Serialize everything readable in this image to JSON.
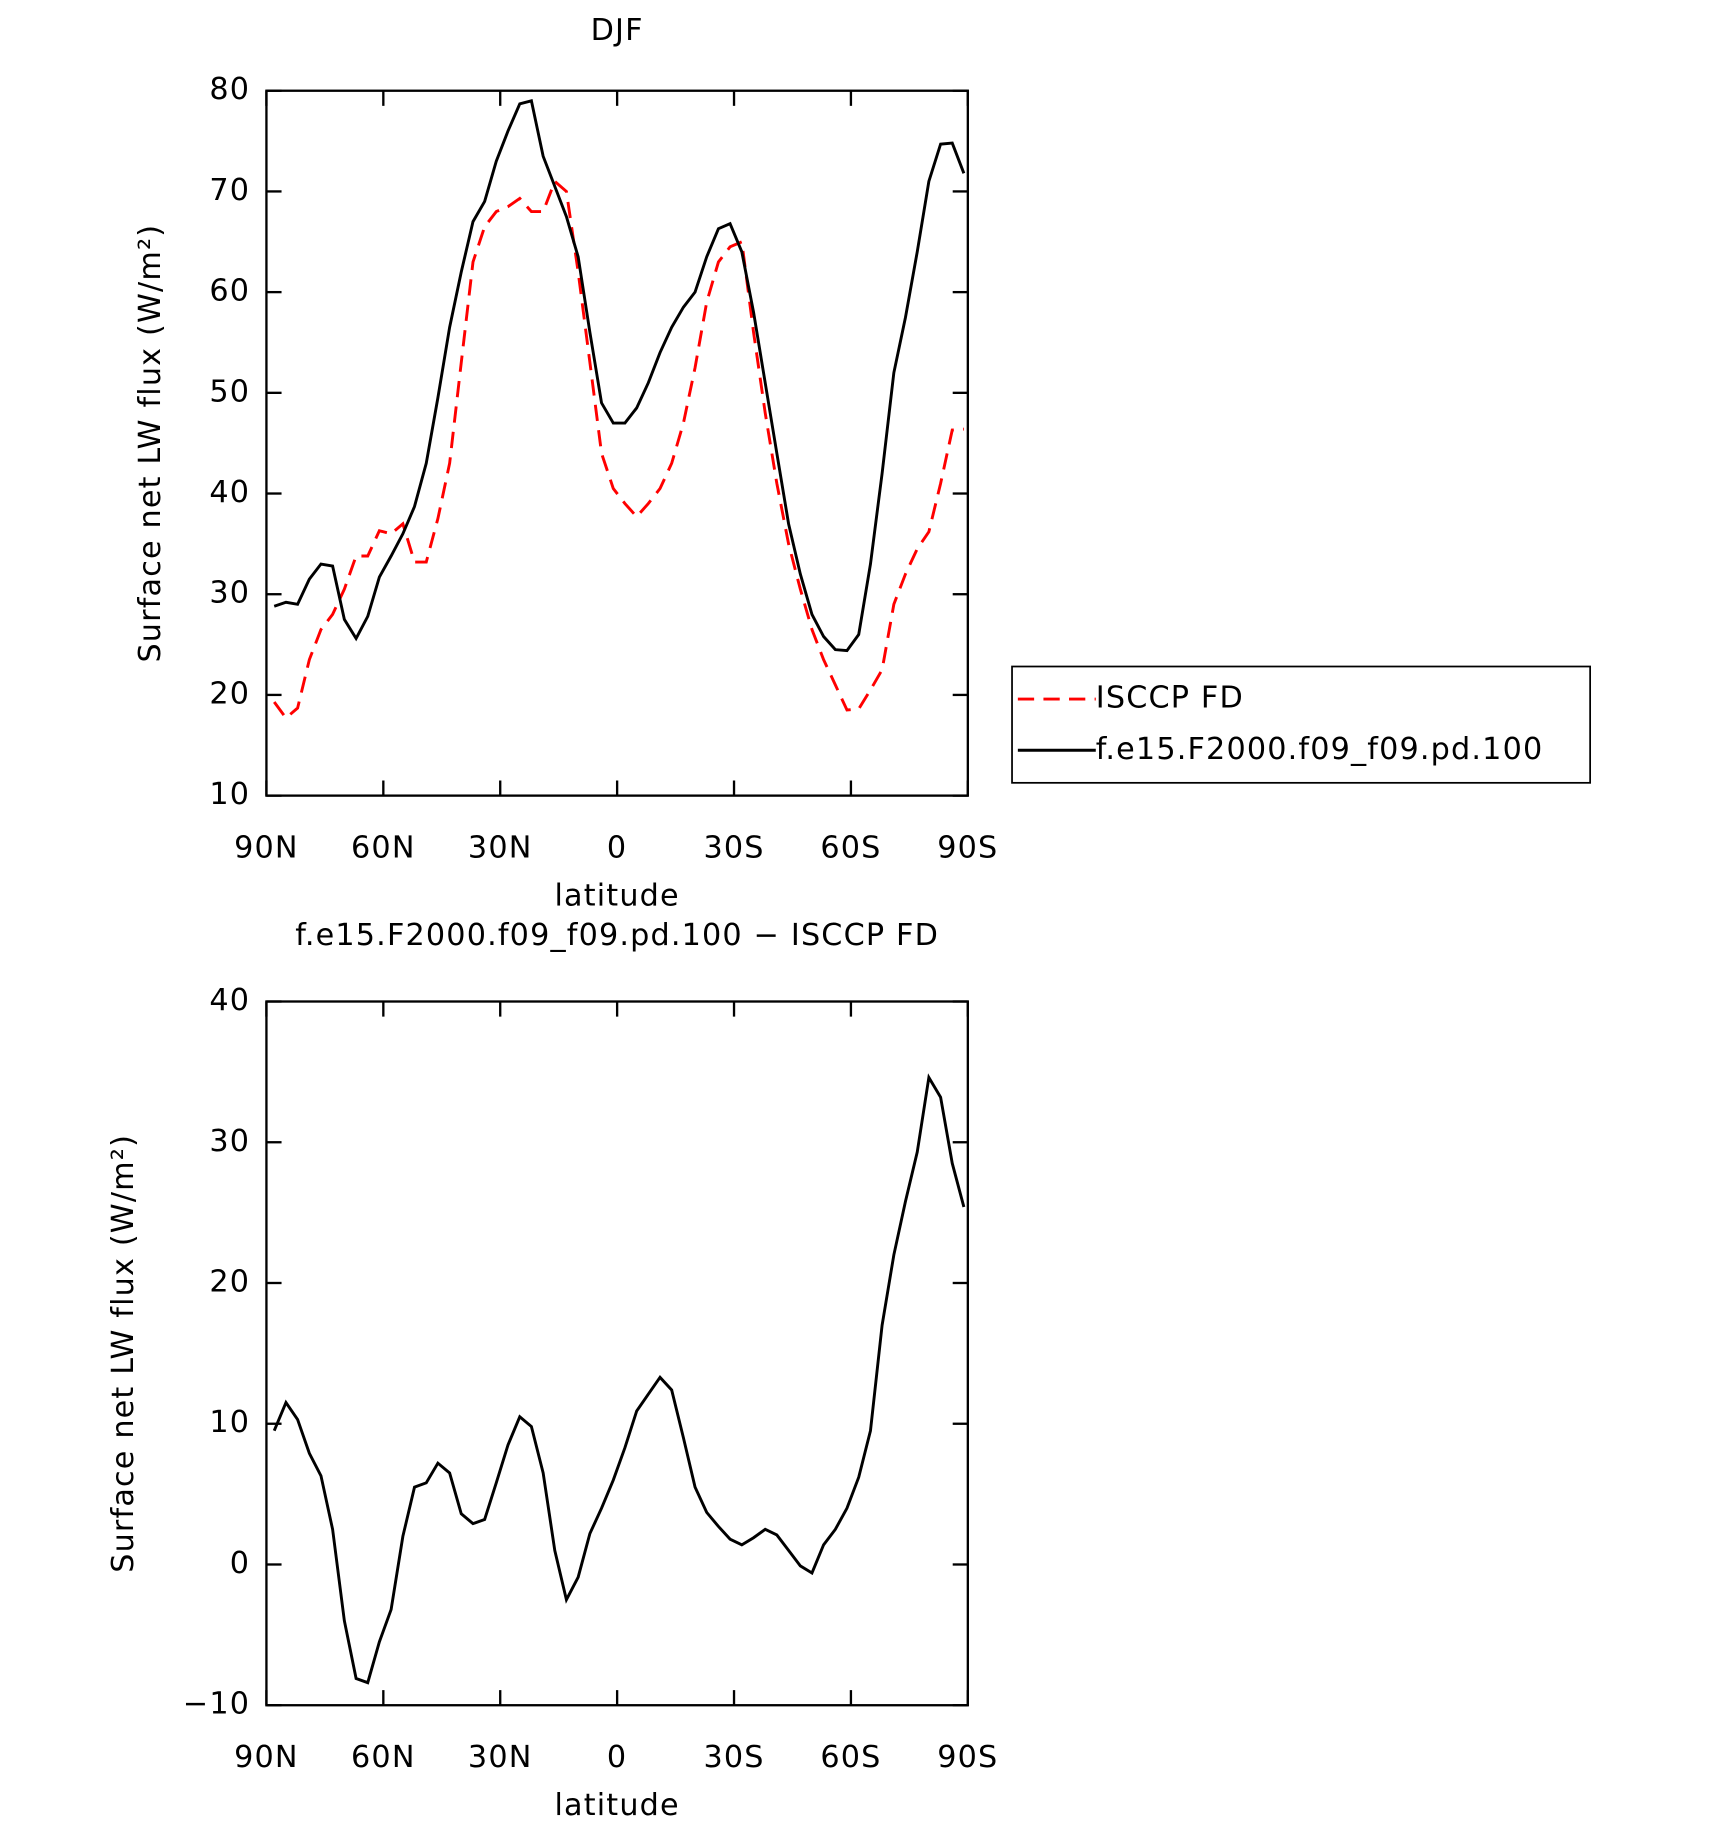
{
  "chart_data": [
    {
      "type": "line",
      "title": "DJF",
      "x_label": "latitude",
      "y_label": "Surface net LW flux (W/m²)",
      "x": [
        88,
        85,
        82,
        79,
        76,
        73,
        70,
        67,
        64,
        61,
        58,
        55,
        52,
        49,
        46,
        43,
        40,
        37,
        34,
        31,
        28,
        25,
        22,
        19,
        16,
        13,
        10,
        7,
        4,
        1,
        -2,
        -5,
        -8,
        -11,
        -14,
        -17,
        -20,
        -23,
        -26,
        -29,
        -32,
        -35,
        -38,
        -41,
        -44,
        -47,
        -50,
        -53,
        -56,
        -59,
        -62,
        -65,
        -68,
        -71,
        -74,
        -77,
        -80,
        -83,
        -86,
        -89
      ],
      "xlim": [
        90,
        -90
      ],
      "xticks": [
        {
          "value": 90,
          "label": "90N"
        },
        {
          "value": 60,
          "label": "60N"
        },
        {
          "value": 30,
          "label": "30N"
        },
        0,
        {
          "value": -30,
          "label": "30S"
        },
        {
          "value": -60,
          "label": "60S"
        },
        {
          "value": -90,
          "label": "90S"
        }
      ],
      "ylim": [
        10,
        80
      ],
      "yticks": [
        10,
        20,
        30,
        40,
        50,
        60,
        70,
        80
      ],
      "legend": "right",
      "series": [
        {
          "name": "ISCCP FD",
          "color": "#ff0000",
          "line_style": "dashed",
          "values": [
            19.3,
            17.7,
            18.7,
            23.5,
            26.5,
            28,
            30.5,
            33.8,
            33.8,
            36.3,
            36,
            37,
            33.2,
            33.2,
            37.5,
            43,
            53,
            63,
            66.5,
            68,
            68.5,
            69.3,
            68,
            68,
            71,
            70,
            62,
            53,
            44,
            40.5,
            39,
            37.7,
            39,
            40.5,
            43,
            47,
            52.5,
            59,
            63,
            64.5,
            65,
            56,
            48,
            41,
            35,
            30.5,
            26.5,
            23.5,
            21,
            18.5,
            18.6,
            20.5,
            22.5,
            29,
            32,
            34.5,
            36.2,
            41,
            46.3,
            46.4
          ]
        },
        {
          "name": "f.e15.F2000.f09_f09.pd.100",
          "color": "#000000",
          "line_style": "solid",
          "values": [
            28.8,
            29.2,
            29,
            31.5,
            33,
            32.8,
            27.5,
            25.6,
            27.8,
            31.7,
            33.8,
            36,
            38.7,
            43,
            49.5,
            56.5,
            62,
            67,
            69,
            73,
            76,
            78.7,
            79,
            73.5,
            70.5,
            67.5,
            63.5,
            56,
            49,
            47,
            47,
            48.5,
            51,
            54,
            56.5,
            58.5,
            60,
            63.5,
            66.3,
            66.8,
            64,
            58,
            51,
            44,
            37,
            32,
            28,
            25.8,
            24.5,
            24.4,
            26,
            33,
            42,
            52,
            57.5,
            64,
            71,
            74.7,
            74.8,
            71.8
          ]
        }
      ]
    },
    {
      "type": "line",
      "title": "f.e15.F2000.f09_f09.pd.100 − ISCCP FD",
      "x_label": "latitude",
      "y_label": "Surface net LW flux (W/m²)",
      "x": [
        88,
        85,
        82,
        79,
        76,
        73,
        70,
        67,
        64,
        61,
        58,
        55,
        52,
        49,
        46,
        43,
        40,
        37,
        34,
        31,
        28,
        25,
        22,
        19,
        16,
        13,
        10,
        7,
        4,
        1,
        -2,
        -5,
        -8,
        -11,
        -14,
        -17,
        -20,
        -23,
        -26,
        -29,
        -32,
        -35,
        -38,
        -41,
        -44,
        -47,
        -50,
        -53,
        -56,
        -59,
        -62,
        -65,
        -68,
        -71,
        -74,
        -77,
        -80,
        -83,
        -86,
        -89
      ],
      "xlim": [
        90,
        -90
      ],
      "xticks": [
        {
          "value": 90,
          "label": "90N"
        },
        {
          "value": 60,
          "label": "60N"
        },
        {
          "value": 30,
          "label": "30N"
        },
        0,
        {
          "value": -30,
          "label": "30S"
        },
        {
          "value": -60,
          "label": "60S"
        },
        {
          "value": -90,
          "label": "90S"
        }
      ],
      "ylim": [
        -10,
        40
      ],
      "yticks": [
        {
          "value": -10,
          "label": "−10"
        },
        0,
        10,
        20,
        30,
        40
      ],
      "series": [
        {
          "color": "#000000",
          "line_style": "solid",
          "values": [
            9.5,
            11.5,
            10.3,
            7.9,
            6.3,
            2.5,
            -4,
            -8.1,
            -8.4,
            -5.5,
            -3.2,
            2,
            5.5,
            5.8,
            7.2,
            6.5,
            3.6,
            2.9,
            3.2,
            5.8,
            8.5,
            10.5,
            9.8,
            6.5,
            1,
            -2.5,
            -0.9,
            2.2,
            4,
            6,
            8.3,
            10.9,
            12.1,
            13.3,
            12.4,
            9,
            5.5,
            3.7,
            2.7,
            1.8,
            1.4,
            1.9,
            2.5,
            2.1,
            1,
            -0.1,
            -0.6,
            1.4,
            2.5,
            4,
            6.2,
            9.5,
            17,
            22,
            25.8,
            29.3,
            34.6,
            33.2,
            28.5,
            25.4
          ]
        }
      ]
    }
  ]
}
